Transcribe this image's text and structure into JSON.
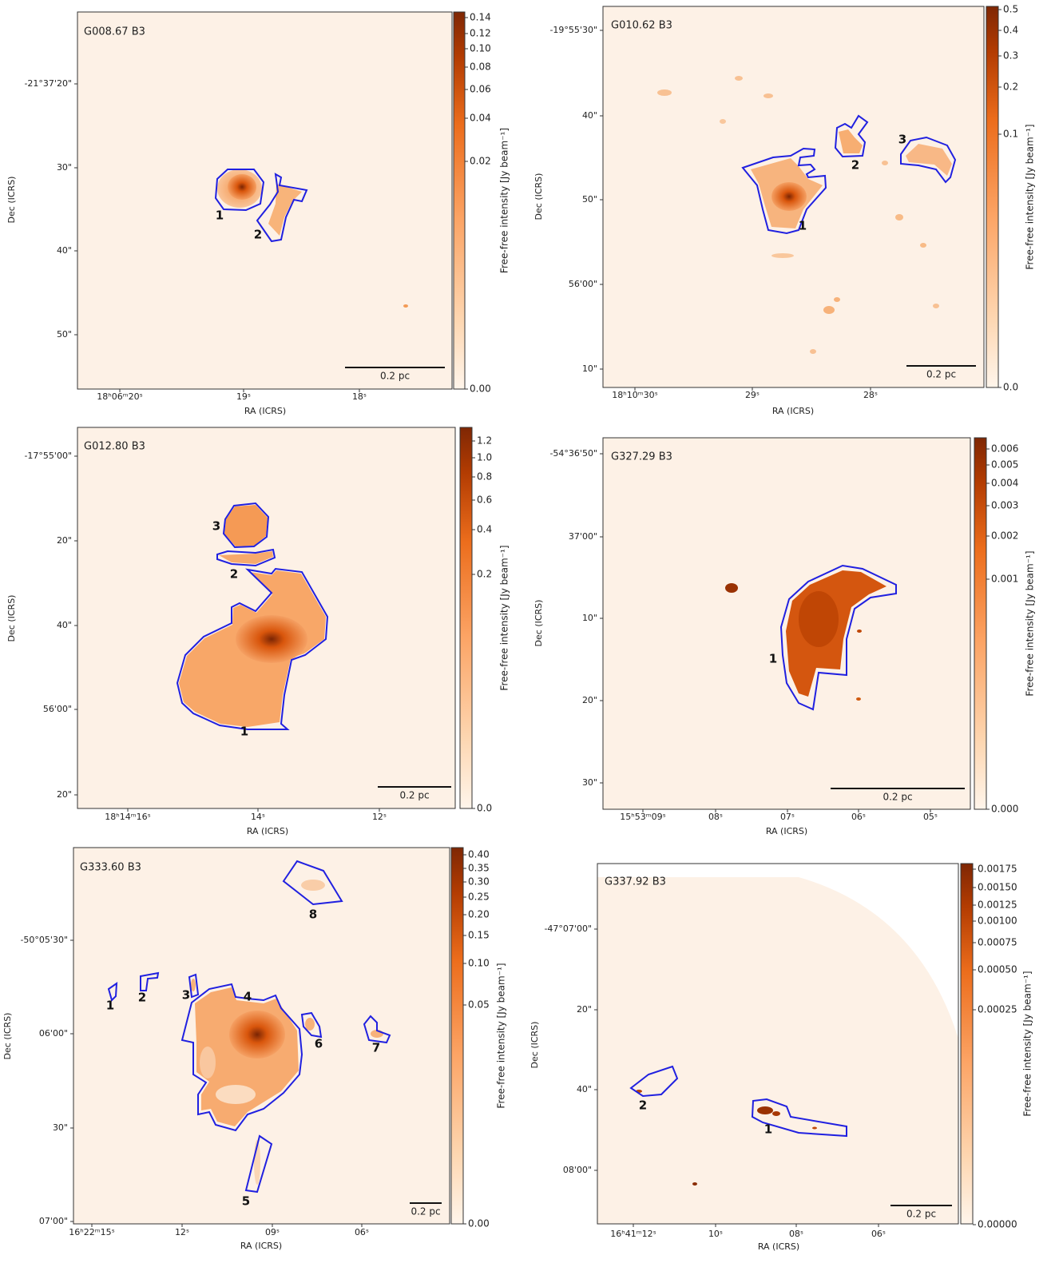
{
  "panels": [
    {
      "title": "G008.67 B3",
      "x_axis_label": "RA (ICRS)",
      "y_axis_label": "Dec (ICRS)",
      "colorbar_label": "Free-free intensity [Jy beam⁻¹]",
      "colorbar_ticks": [
        "0.14",
        "0.12",
        "0.10",
        "0.08",
        "0.06",
        "0.04",
        "0.02",
        "0.00"
      ],
      "x_ticks": [
        "18ʰ06ᵐ20ˢ",
        "19ˢ",
        "18ˢ"
      ],
      "y_ticks": [
        "-21°37'20\"",
        "30\"",
        "40\"",
        "50\""
      ],
      "scale_bar": "0.2 pc",
      "regions": [
        "1",
        "2"
      ]
    },
    {
      "title": "G010.62 B3",
      "x_axis_label": "RA (ICRS)",
      "y_axis_label": "Dec (ICRS)",
      "colorbar_label": "Free-free intensity [Jy beam⁻¹]",
      "colorbar_ticks": [
        "0.5",
        "0.4",
        "0.3",
        "0.2",
        "0.1",
        "0.0"
      ],
      "x_ticks": [
        "18ʰ10ᵐ30ˢ",
        "29ˢ",
        "28ˢ"
      ],
      "y_ticks": [
        "-19°55'30\"",
        "40\"",
        "50\"",
        "56'00\"",
        "10\""
      ],
      "scale_bar": "0.2 pc",
      "regions": [
        "1",
        "2",
        "3"
      ]
    },
    {
      "title": "G012.80 B3",
      "x_axis_label": "RA (ICRS)",
      "y_axis_label": "Dec (ICRS)",
      "colorbar_label": "Free-free intensity [Jy beam⁻¹]",
      "colorbar_ticks": [
        "1.2",
        "1.0",
        "0.8",
        "0.6",
        "0.4",
        "0.2",
        "0.0"
      ],
      "x_ticks": [
        "18ʰ14ᵐ16ˢ",
        "14ˢ",
        "12ˢ"
      ],
      "y_ticks": [
        "-17°55'00\"",
        "20\"",
        "40\"",
        "56'00\"",
        "20\""
      ],
      "scale_bar": "0.2 pc",
      "regions": [
        "3",
        "2",
        "1"
      ]
    },
    {
      "title": "G327.29 B3",
      "x_axis_label": "RA (ICRS)",
      "y_axis_label": "Dec (ICRS)",
      "colorbar_label": "Free-free intensity [Jy beam⁻¹]",
      "colorbar_ticks": [
        "0.006",
        "0.005",
        "0.004",
        "0.003",
        "0.002",
        "0.001",
        "0.000"
      ],
      "x_ticks": [
        "15ʰ53ᵐ09ˢ",
        "08ˢ",
        "07ˢ",
        "06ˢ",
        "05ˢ"
      ],
      "y_ticks": [
        "-54°36'50\"",
        "37'00\"",
        "10\"",
        "20\"",
        "30\""
      ],
      "scale_bar": "0.2 pc",
      "regions": [
        "1"
      ]
    },
    {
      "title": "G333.60 B3",
      "x_axis_label": "RA (ICRS)",
      "y_axis_label": "Dec (ICRS)",
      "colorbar_label": "Free-free intensity [Jy beam⁻¹]",
      "colorbar_ticks": [
        "0.40",
        "0.35",
        "0.30",
        "0.25",
        "0.20",
        "0.15",
        "0.10",
        "0.05",
        "0.00"
      ],
      "x_ticks": [
        "16ʰ22ᵐ15ˢ",
        "12ˢ",
        "09ˢ",
        "06ˢ"
      ],
      "y_ticks": [
        "-50°05'30\"",
        "06'00\"",
        "30\"",
        "07'00\""
      ],
      "scale_bar": "0.2 pc",
      "regions": [
        "4",
        "8",
        "1",
        "2",
        "3",
        "6",
        "7",
        "5"
      ]
    },
    {
      "title": "G337.92 B3",
      "x_axis_label": "RA (ICRS)",
      "y_axis_label": "Dec (ICRS)",
      "colorbar_label": "Free-free intensity [Jy beam⁻¹]",
      "colorbar_ticks": [
        "0.00175",
        "0.00150",
        "0.00125",
        "0.00100",
        "0.00075",
        "0.00050",
        "0.00025",
        "0.00000"
      ],
      "x_ticks": [
        "16ʰ41ᵐ12ˢ",
        "10ˢ",
        "08ˢ",
        "06ˢ"
      ],
      "y_ticks": [
        "-47°07'00\"",
        "20\"",
        "40\"",
        "08'00\""
      ],
      "scale_bar": "0.2 pc",
      "regions": [
        "2",
        "1"
      ]
    }
  ]
}
